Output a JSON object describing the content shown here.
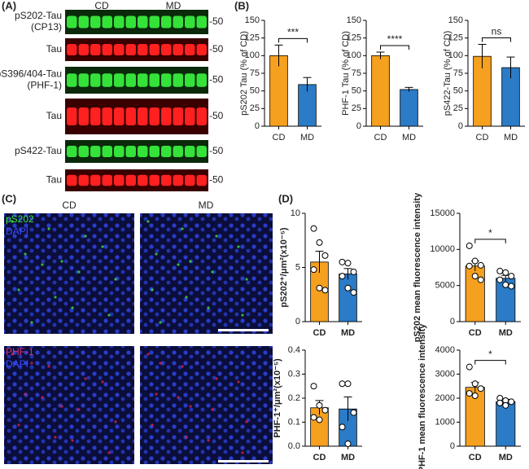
{
  "panel_labels": [
    "(A)",
    "(B)",
    "(C)",
    "(D)"
  ],
  "blot": {
    "groups": [
      "CD",
      "MD"
    ],
    "marker": "-50",
    "rows": [
      "pS202-Tau\n(CP13)",
      "Tau",
      "pS396/404-Tau\n(PHF-1)",
      "Tau",
      "pS422-Tau",
      "Tau"
    ]
  },
  "micrographs": {
    "columns": [
      "CD",
      "MD"
    ],
    "rows": [
      [
        "pS202",
        "DAPI"
      ],
      [
        "PHF-1",
        "DAPI"
      ]
    ]
  },
  "chart_data": [
    {
      "type": "bar",
      "y_label": "pS202 Tau (% of CD)",
      "categories": [
        "CD",
        "MD"
      ],
      "values": [
        100,
        59
      ],
      "errors": [
        15,
        10
      ],
      "colors": [
        "#f5a01e",
        "#2b7bc6"
      ],
      "ylim": [
        0,
        150
      ],
      "yticks": [
        0,
        25,
        50,
        75,
        100,
        125,
        150
      ],
      "significance": "***"
    },
    {
      "type": "bar",
      "y_label": "PHF-1 Tau (% of CD)",
      "categories": [
        "CD",
        "MD"
      ],
      "values": [
        100,
        52
      ],
      "errors": [
        5,
        3
      ],
      "colors": [
        "#f5a01e",
        "#2b7bc6"
      ],
      "ylim": [
        0,
        150
      ],
      "yticks": [
        0,
        25,
        50,
        75,
        100,
        125,
        150
      ],
      "significance": "****"
    },
    {
      "type": "bar",
      "y_label": "pS422-Tau (% of CD)",
      "categories": [
        "CD",
        "MD"
      ],
      "values": [
        99,
        83
      ],
      "errors": [
        17,
        15
      ],
      "colors": [
        "#f5a01e",
        "#2b7bc6"
      ],
      "ylim": [
        0,
        150
      ],
      "yticks": [
        0,
        25,
        50,
        75,
        100,
        125,
        150
      ],
      "significance": "ns"
    },
    {
      "type": "bar",
      "y_label": "pS202⁺/μm²(x10⁻⁵)",
      "categories": [
        "CD",
        "MD"
      ],
      "values": [
        5.5,
        4.4
      ],
      "errors": [
        1.0,
        0.5
      ],
      "points": [
        [
          8.6,
          7.3,
          6.1,
          4.8,
          3.1,
          2.9
        ],
        [
          5.5,
          5.4,
          4.6,
          4.2,
          3.1,
          2.7
        ]
      ],
      "colors": [
        "#f5a01e",
        "#2b7bc6"
      ],
      "ylim": [
        0,
        10
      ],
      "yticks": [
        0,
        5,
        10
      ]
    },
    {
      "type": "bar",
      "y_label": "pS202 mean fluorescence intensity",
      "categories": [
        "CD",
        "MD"
      ],
      "values": [
        7700,
        6000
      ],
      "errors": [
        700,
        400
      ],
      "points": [
        [
          10500,
          8400,
          7800,
          7700,
          6300,
          5800
        ],
        [
          7000,
          6800,
          6300,
          5800,
          5100,
          4900
        ]
      ],
      "colors": [
        "#f5a01e",
        "#2b7bc6"
      ],
      "ylim": [
        0,
        15000
      ],
      "yticks": [
        0,
        5000,
        10000,
        15000
      ],
      "significance": "*"
    },
    {
      "type": "bar",
      "y_label": "PHF-1⁺/μm²(x10⁻⁵)",
      "categories": [
        "CD",
        "MD"
      ],
      "values": [
        0.16,
        0.155
      ],
      "errors": [
        0.03,
        0.05
      ],
      "points": [
        [
          0.25,
          0.17,
          0.15,
          0.12,
          0.11
        ],
        [
          0.26,
          0.26,
          0.14,
          0.08,
          0.01
        ]
      ],
      "colors": [
        "#f5a01e",
        "#2b7bc6"
      ],
      "ylim": [
        0,
        0.4
      ],
      "yticks": [
        {
          "value": 0,
          "label": "0.0"
        },
        0.1,
        0.2,
        0.3,
        0.4
      ]
    },
    {
      "type": "bar",
      "y_label": "PHF-1 mean fluorescence intensity",
      "categories": [
        "CD",
        "MD"
      ],
      "values": [
        2450,
        1850
      ],
      "errors": [
        200,
        100
      ],
      "points": [
        [
          3300,
          2600,
          2400,
          2200,
          2100
        ],
        [
          2000,
          1900,
          1850,
          1800,
          1700
        ]
      ],
      "colors": [
        "#f5a01e",
        "#2b7bc6"
      ],
      "ylim": [
        0,
        4000
      ],
      "yticks": [
        0,
        1000,
        2000,
        3000,
        4000
      ],
      "significance": "*"
    }
  ]
}
